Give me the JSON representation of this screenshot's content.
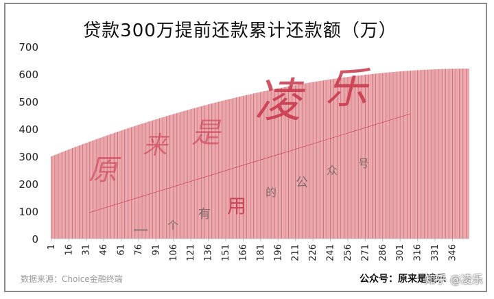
{
  "chart_data": {
    "type": "bar",
    "title": "贷款300万提前还款累计还款额（万）",
    "x_start": 1,
    "x_end": 360,
    "x_tick_labels": [
      "1",
      "16",
      "31",
      "46",
      "61",
      "76",
      "91",
      "106",
      "121",
      "136",
      "151",
      "166",
      "181",
      "196",
      "211",
      "226",
      "241",
      "256",
      "271",
      "286",
      "301",
      "316",
      "331",
      "346"
    ],
    "ylim": [
      0,
      700
    ],
    "y_ticks": [
      0,
      100,
      200,
      300,
      400,
      500,
      600,
      700
    ],
    "values_start": 300,
    "values_end": 620,
    "series": [
      {
        "name": "",
        "color": "#e8a5a9",
        "stroke_color": "#c0394a"
      }
    ],
    "grid": false,
    "legend": "none"
  },
  "watermark": {
    "big_chars": [
      "原",
      "来",
      "是",
      "凌",
      "乐"
    ],
    "small_chars": [
      "一",
      "个",
      "有",
      "用",
      "的",
      "公",
      "众",
      "号"
    ],
    "color": "#c8354a"
  },
  "footer": {
    "source": "数据来源：Choice金融终端",
    "signature": "公众号：原来是凌乐",
    "platform": "知乎 @凌乐"
  }
}
